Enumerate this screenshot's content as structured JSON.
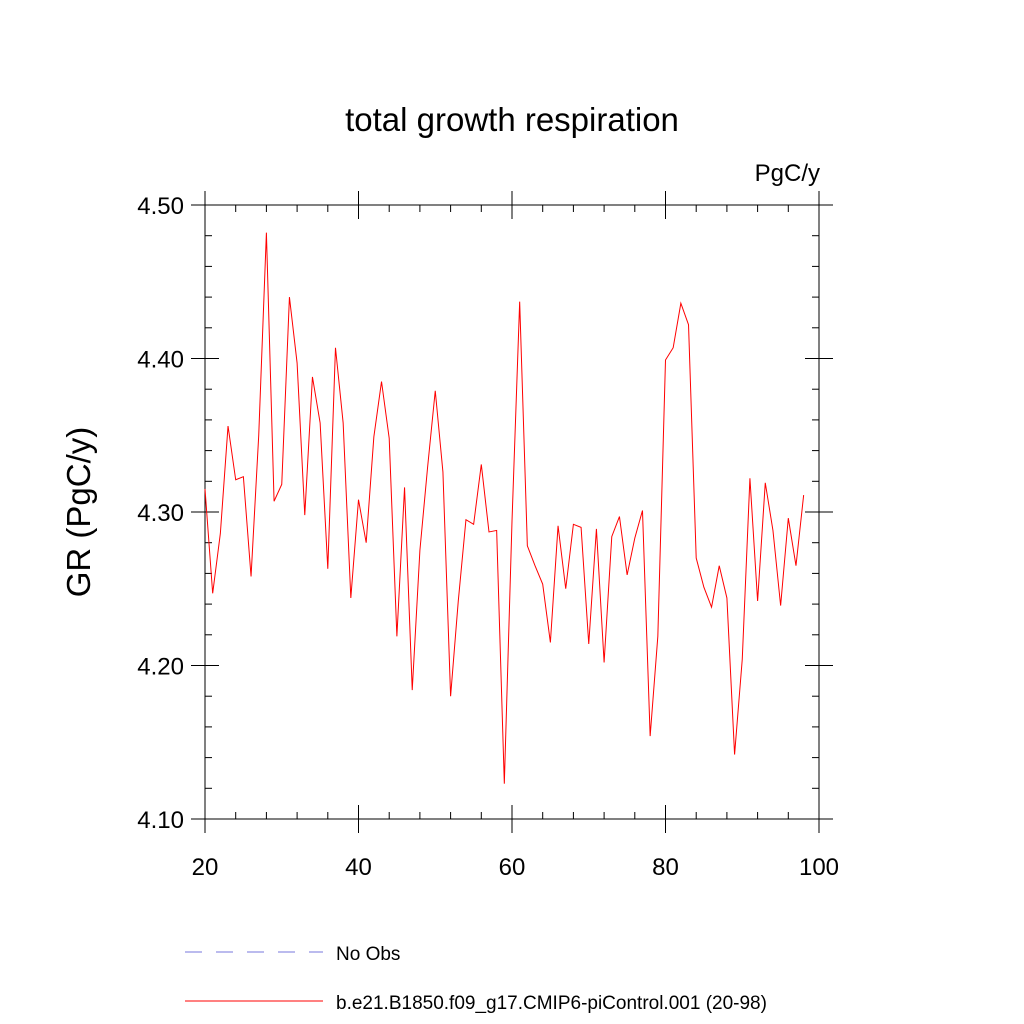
{
  "chart_data": {
    "type": "line",
    "title": "total growth respiration",
    "units_label": "PgC/y",
    "xlabel": "",
    "ylabel": "GR  (PgC/y)",
    "xlim": [
      20,
      100
    ],
    "ylim": [
      4.1,
      4.5
    ],
    "x_ticks": [
      20,
      40,
      60,
      80,
      100
    ],
    "x_tick_labels": [
      "20",
      "40",
      "60",
      "80",
      "100"
    ],
    "y_ticks": [
      4.1,
      4.2,
      4.3,
      4.4,
      4.5
    ],
    "y_tick_labels": [
      "4.10",
      "4.20",
      "4.30",
      "4.40",
      "4.50"
    ],
    "grid": false,
    "legend_position": "bottom",
    "series": [
      {
        "name": "No Obs",
        "color": "#7777dd",
        "dash": "dashed",
        "x": [],
        "values": []
      },
      {
        "name": "b.e21.B1850.f09_g17.CMIP6-piControl.001 (20-98)",
        "color": "#ff0000",
        "dash": "solid",
        "x": [
          20,
          21,
          22,
          23,
          24,
          25,
          26,
          27,
          28,
          29,
          30,
          31,
          32,
          33,
          34,
          35,
          36,
          37,
          38,
          39,
          40,
          41,
          42,
          43,
          44,
          45,
          46,
          47,
          48,
          49,
          50,
          51,
          52,
          53,
          54,
          55,
          56,
          57,
          58,
          59,
          60,
          61,
          62,
          63,
          64,
          65,
          66,
          67,
          68,
          69,
          70,
          71,
          72,
          73,
          74,
          75,
          76,
          77,
          78,
          79,
          80,
          81,
          82,
          83,
          84,
          85,
          86,
          87,
          88,
          89,
          90,
          91,
          92,
          93,
          94,
          95,
          96,
          97,
          98
        ],
        "values": [
          4.315,
          4.247,
          4.286,
          4.356,
          4.321,
          4.323,
          4.258,
          4.35,
          4.482,
          4.307,
          4.318,
          4.44,
          4.397,
          4.298,
          4.388,
          4.358,
          4.263,
          4.407,
          4.358,
          4.244,
          4.308,
          4.28,
          4.349,
          4.385,
          4.348,
          4.219,
          4.316,
          4.184,
          4.275,
          4.329,
          4.379,
          4.326,
          4.18,
          4.242,
          4.295,
          4.292,
          4.331,
          4.287,
          4.288,
          4.123,
          4.294,
          4.437,
          4.278,
          4.265,
          4.253,
          4.215,
          4.291,
          4.25,
          4.292,
          4.29,
          4.214,
          4.289,
          4.202,
          4.284,
          4.297,
          4.259,
          4.283,
          4.301,
          4.154,
          4.219,
          4.399,
          4.407,
          4.436,
          4.422,
          4.27,
          4.251,
          4.238,
          4.265,
          4.244,
          4.142,
          4.204,
          4.322,
          4.242,
          4.319,
          4.288,
          4.239,
          4.296,
          4.265,
          4.311
        ]
      }
    ]
  }
}
